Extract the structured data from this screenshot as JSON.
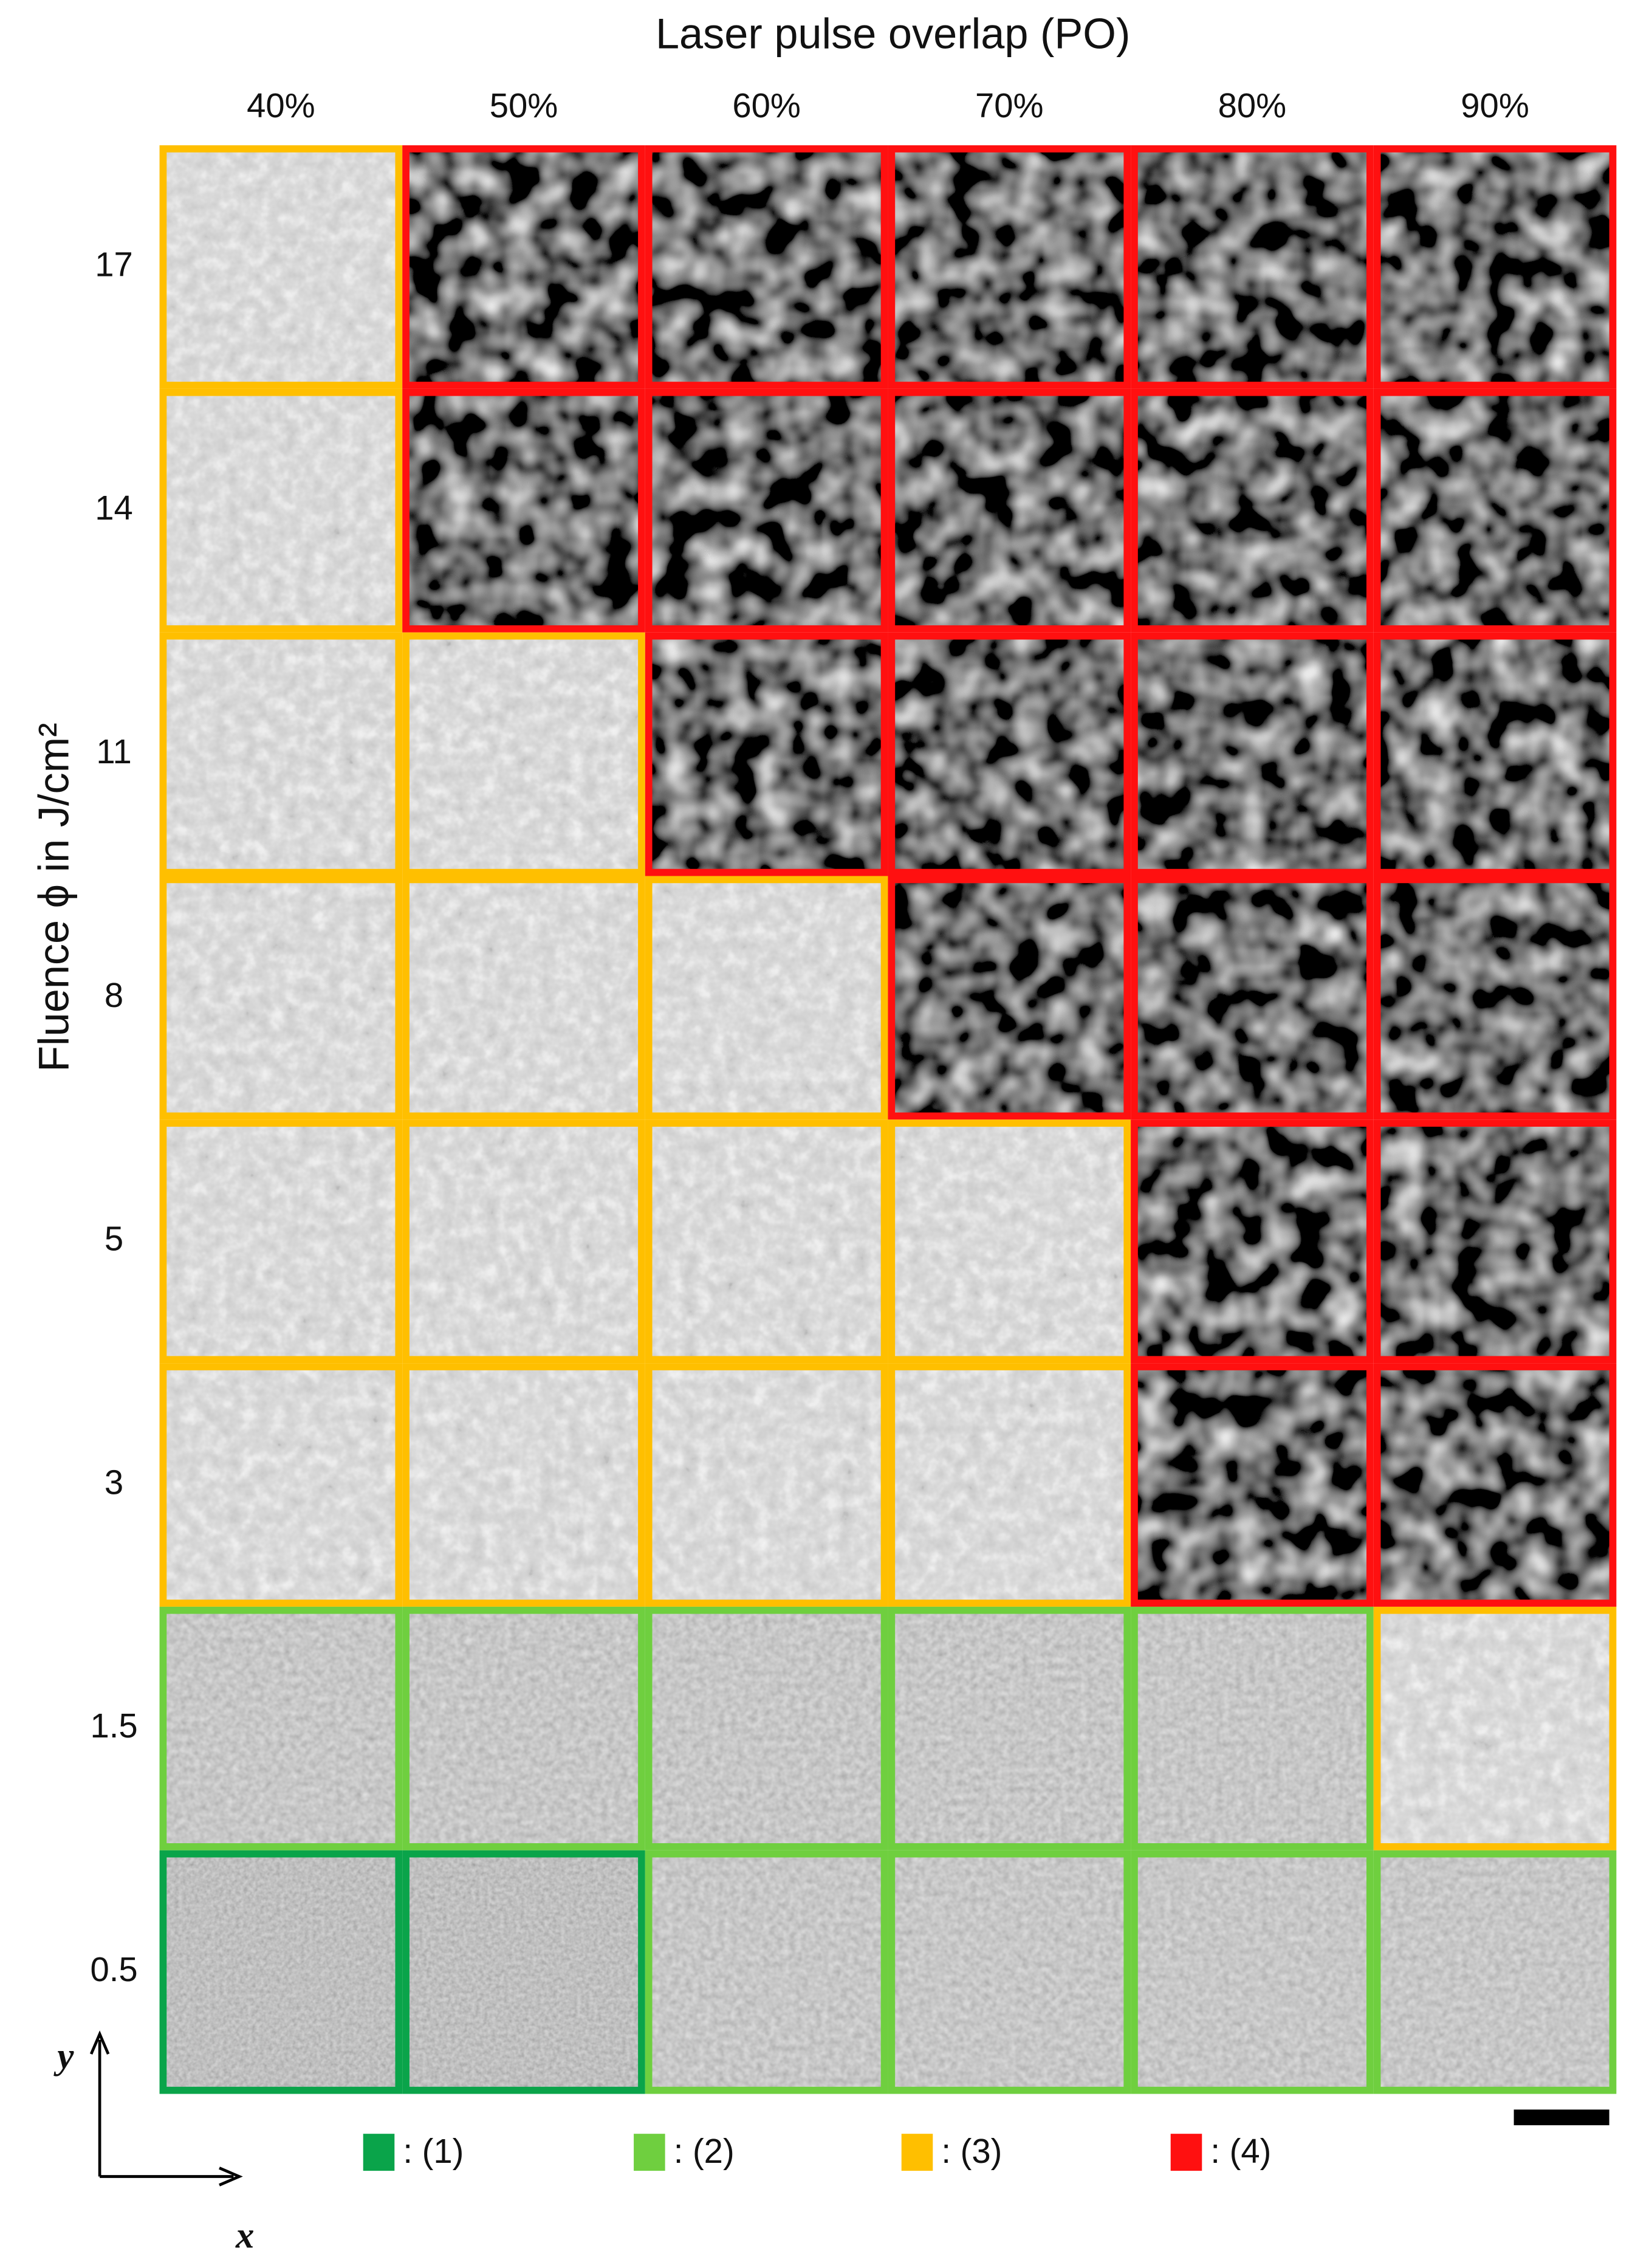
{
  "title": "Laser pulse overlap (PO)",
  "y_label": "Fluence ϕ in J/cm²",
  "columns": [
    "40%",
    "50%",
    "60%",
    "70%",
    "80%",
    "90%"
  ],
  "rows": [
    "17",
    "14",
    "11",
    "8",
    "5",
    "3",
    "1.5",
    "0.5"
  ],
  "classes": [
    [
      3,
      4,
      4,
      4,
      4,
      4
    ],
    [
      3,
      4,
      4,
      4,
      4,
      4
    ],
    [
      3,
      3,
      4,
      4,
      4,
      4
    ],
    [
      3,
      3,
      3,
      4,
      4,
      4
    ],
    [
      3,
      3,
      3,
      3,
      4,
      4
    ],
    [
      3,
      3,
      3,
      3,
      4,
      4
    ],
    [
      2,
      2,
      2,
      2,
      2,
      3
    ],
    [
      1,
      1,
      2,
      2,
      2,
      2
    ]
  ],
  "legend": [
    {
      "label": ": (1)",
      "color": "#0aa44a"
    },
    {
      "label": ": (2)",
      "color": "#6fcf3f"
    },
    {
      "label": ": (3)",
      "color": "#ffbf00"
    },
    {
      "label": ": (4)",
      "color": "#ff1010"
    }
  ],
  "axis_labels": {
    "x": "x",
    "y": "y"
  }
}
